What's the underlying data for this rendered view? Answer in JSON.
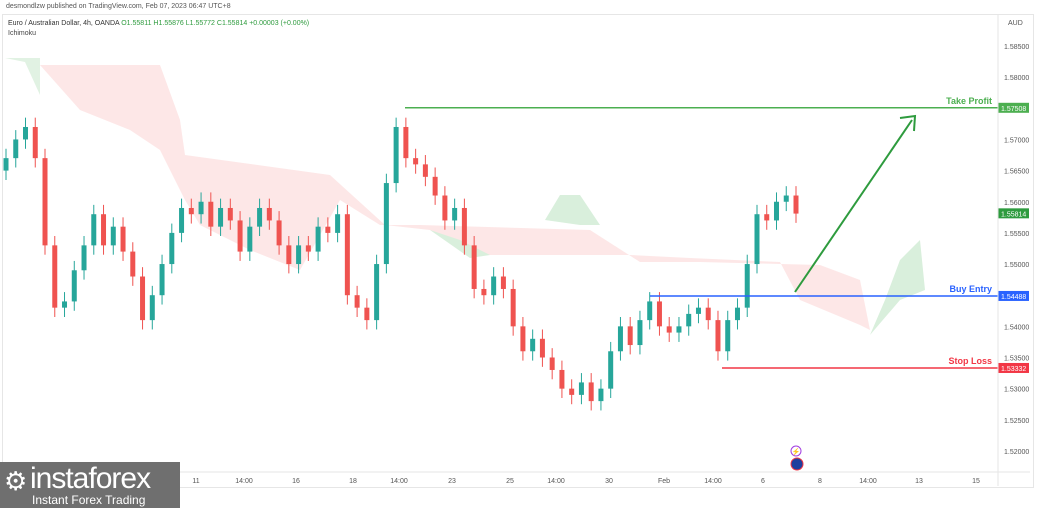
{
  "header": {
    "published": "desmondlzw published on TradingView.com, Feb 07, 2023 06:47 UTC+8",
    "symbol": "Euro / Australian Dollar, 4h, OANDA",
    "open": "O1.55811",
    "high": "H1.55876",
    "low": "L1.55772",
    "close": "C1.55814",
    "change": "+0.00003 (+0.00%)",
    "indicator": "Ichimoku"
  },
  "logo": {
    "name": "instaforex",
    "tagline": "Instant Forex Trading"
  },
  "chart_data": {
    "type": "candlestick",
    "currency": "AUD",
    "ylim": [
      1.5175,
      1.5895
    ],
    "y_ticks": [
      "1.58500",
      "1.58000",
      "1.57000",
      "1.56500",
      "1.56000",
      "1.55500",
      "1.55000",
      "1.54000",
      "1.53500",
      "1.53000",
      "1.52500",
      "1.52000"
    ],
    "x_ticks": [
      "11",
      "14:00",
      "16",
      "18",
      "14:00",
      "23",
      "25",
      "14:00",
      "30",
      "Feb",
      "14:00",
      "6",
      "8",
      "14:00",
      "13",
      "15"
    ],
    "closes": [
      1.567,
      1.57,
      1.572,
      1.567,
      1.553,
      1.543,
      1.544,
      1.549,
      1.553,
      1.558,
      1.553,
      1.556,
      1.552,
      1.548,
      1.541,
      1.545,
      1.55,
      1.555,
      1.559,
      1.558,
      1.56,
      1.556,
      1.559,
      1.557,
      1.552,
      1.556,
      1.559,
      1.557,
      1.553,
      1.55,
      1.553,
      1.552,
      1.556,
      1.555,
      1.558,
      1.545,
      1.543,
      1.541,
      1.55,
      1.563,
      1.572,
      1.567,
      1.566,
      1.564,
      1.561,
      1.557,
      1.559,
      1.553,
      1.546,
      1.545,
      1.548,
      1.546,
      1.54,
      1.536,
      1.538,
      1.535,
      1.533,
      1.53,
      1.529,
      1.531,
      1.528,
      1.53,
      1.536,
      1.54,
      1.537,
      1.541,
      1.544,
      1.54,
      1.539,
      1.54,
      1.542,
      1.543,
      1.541,
      1.536,
      1.541,
      1.543,
      1.55,
      1.558,
      1.557,
      1.56,
      1.561,
      1.5581
    ],
    "levels": [
      {
        "name": "Take Profit",
        "value": 1.57508,
        "label": "1.57508",
        "color": "#4caf50"
      },
      {
        "name": "Buy Entry",
        "value": 1.54488,
        "label": "1.54488",
        "color": "#2962ff"
      },
      {
        "name": "Stop Loss",
        "value": 1.53332,
        "label": "1.53332",
        "color": "#f23645"
      }
    ],
    "last_price": {
      "value": 1.55814,
      "label": "1.55814"
    },
    "colors": {
      "up": "#26a69a",
      "down": "#ef5350"
    }
  }
}
